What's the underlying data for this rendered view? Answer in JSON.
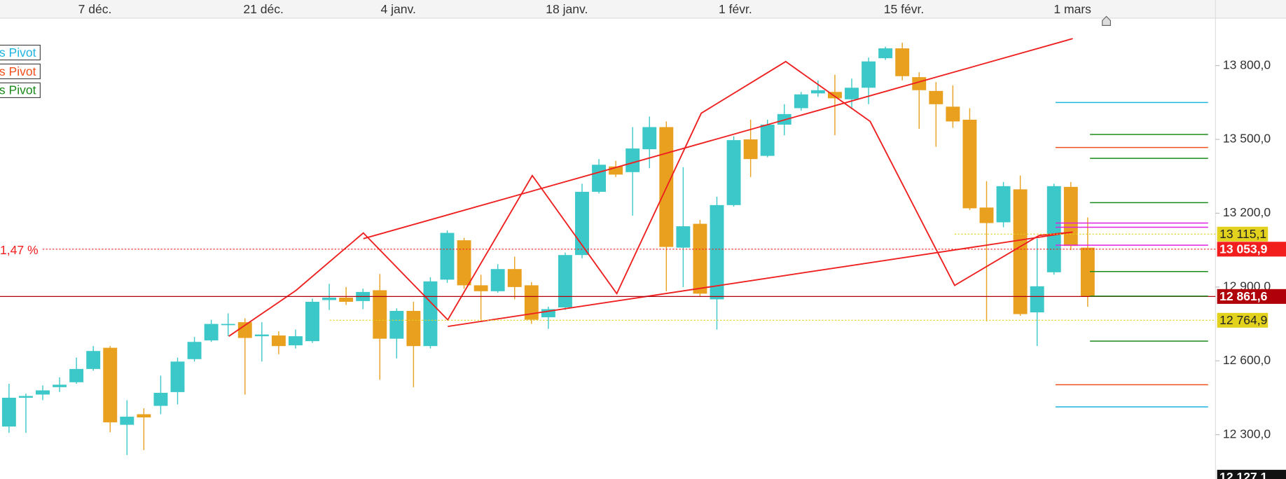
{
  "chart_data": {
    "type": "candlestick",
    "categories": [
      null,
      null,
      null,
      null,
      null,
      "7 déc.",
      null,
      null,
      null,
      null,
      null,
      null,
      null,
      null,
      null,
      "21 déc.",
      null,
      null,
      null,
      null,
      null,
      null,
      null,
      "4 janv.",
      null,
      null,
      null,
      null,
      null,
      null,
      null,
      null,
      null,
      "18 janv.",
      null,
      null,
      null,
      null,
      null,
      null,
      null,
      null,
      null,
      "1 févr.",
      null,
      null,
      null,
      null,
      null,
      null,
      null,
      null,
      null,
      "15 févr.",
      null,
      null,
      null,
      null,
      null,
      null,
      null,
      null,
      null,
      "1 mars",
      null
    ],
    "open": [
      12333,
      12450,
      12463,
      12493,
      12513,
      12567,
      12653,
      12340,
      12383,
      12417,
      12473,
      12607,
      12683,
      12747,
      12757,
      12700,
      12703,
      12663,
      12680,
      12847,
      12857,
      12843,
      12887,
      12690,
      12803,
      12660,
      12930,
      13090,
      12907,
      12883,
      12973,
      12907,
      12777,
      12817,
      13030,
      13287,
      13390,
      13367,
      13460,
      13550,
      13060,
      13157,
      12850,
      13233,
      13500,
      13433,
      13560,
      13627,
      13687,
      13693,
      13663,
      13710,
      13830,
      13870,
      13753,
      13697,
      13633,
      13580,
      13223,
      13163,
      13297,
      12797,
      12960,
      13307,
      13060
    ],
    "high": [
      12507,
      12467,
      12500,
      12533,
      12613,
      12660,
      12660,
      12440,
      12407,
      12540,
      12613,
      12697,
      12767,
      12793,
      12773,
      12757,
      12720,
      12727,
      12853,
      12913,
      12900,
      12893,
      12953,
      12813,
      12840,
      12940,
      13130,
      13100,
      12950,
      12993,
      13023,
      12920,
      12820,
      13040,
      13320,
      13420,
      13413,
      13550,
      13593,
      13573,
      13387,
      13173,
      13267,
      13513,
      13580,
      13580,
      13643,
      13693,
      13740,
      13763,
      13747,
      13833,
      13877,
      13893,
      13773,
      13733,
      13720,
      13627,
      13330,
      13327,
      13353,
      13097,
      13320,
      13327,
      13183
    ],
    "low": [
      12307,
      12307,
      12440,
      12473,
      12507,
      12560,
      12310,
      12217,
      12237,
      12383,
      12423,
      12597,
      12677,
      12700,
      12463,
      12597,
      12627,
      12650,
      12673,
      12807,
      12827,
      12810,
      12523,
      12610,
      12493,
      12650,
      12917,
      12893,
      12767,
      12877,
      12850,
      12750,
      12730,
      12807,
      13017,
      13280,
      13347,
      13190,
      13383,
      12883,
      12900,
      12860,
      12727,
      13227,
      13347,
      13427,
      13517,
      13617,
      13673,
      13517,
      13623,
      13643,
      13823,
      13740,
      13543,
      13470,
      13547,
      13213,
      12760,
      13143,
      12783,
      12660,
      12950,
      13050,
      12820
    ],
    "close": [
      12450,
      12457,
      12480,
      12503,
      12567,
      12640,
      12350,
      12373,
      12370,
      12470,
      12597,
      12677,
      12750,
      12750,
      12693,
      12707,
      12660,
      12700,
      12840,
      12857,
      12840,
      12880,
      12690,
      12803,
      12660,
      12923,
      13120,
      12907,
      12883,
      12973,
      12900,
      12767,
      12810,
      13030,
      13287,
      13397,
      13357,
      13463,
      13550,
      13063,
      13147,
      12873,
      13233,
      13497,
      13420,
      13560,
      13603,
      13683,
      13700,
      13667,
      13710,
      13817,
      13870,
      13757,
      13700,
      13643,
      13573,
      13220,
      13160,
      13310,
      12790,
      12903,
      13310,
      13067,
      12861.6
    ],
    "up_color": "#3cc8c8",
    "down_color": "#e8a01e",
    "ylim": [
      12120,
      13993
    ],
    "yticks": [
      {
        "value": 12300,
        "label": "12 300,0"
      },
      {
        "value": 12600,
        "label": "12 600,0"
      },
      {
        "value": 12900,
        "label": "12 900,0"
      },
      {
        "value": 13200,
        "label": "13 200,0"
      },
      {
        "value": 13500,
        "label": "13 500,0"
      },
      {
        "value": 13800,
        "label": "13 800,0"
      }
    ],
    "price_lines": [
      {
        "value": 13115.1,
        "label": "13 115,1",
        "color": "#e2d21e",
        "text_color": "#222"
      },
      {
        "value": 13053.9,
        "label": "13 053,9",
        "color": "#f21e1e",
        "text_color": "#fff"
      },
      {
        "value": 12861.6,
        "label": "12 861,6",
        "color": "#b0000a",
        "text_color": "#fff"
      },
      {
        "value": 12764.9,
        "label": "12 764,9",
        "color": "#e2d21e",
        "text_color": "#222"
      },
      {
        "value": 12127.1,
        "label": "12 127,1",
        "color": "#111111",
        "text_color": "#fff"
      }
    ],
    "percent_label": "1,47 %",
    "pivots": [
      {
        "name": "s Pivot",
        "color": "#1eb4e0",
        "values": [
          13650,
          12413
        ]
      },
      {
        "name": "s Pivot",
        "color": "#f0501e",
        "values": [
          13467,
          12503
        ]
      },
      {
        "name": "s Pivot",
        "color": "#1a8a1a",
        "values": [
          13520,
          13423,
          13243,
          12963,
          12863,
          12680
        ]
      },
      {
        "color": "#e020e0",
        "values": [
          13160,
          13143,
          13070
        ]
      }
    ]
  }
}
